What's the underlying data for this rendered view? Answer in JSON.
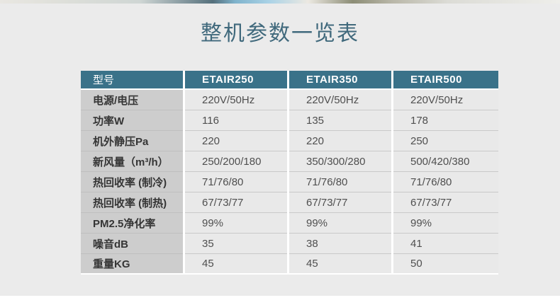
{
  "page": {
    "title": "整机参数一览表"
  },
  "colors": {
    "header_teal": "#3a7289",
    "title_teal": "#40697c",
    "label_column_gray": "#cdcdcd",
    "data_cell_gray": "#e9e9e9",
    "page_background": "#ebebeb",
    "column_gap_white": "#ffffff"
  },
  "table": {
    "columns": [
      "型号",
      "ETAIR250",
      "ETAIR350",
      "ETAIR500"
    ],
    "rows": [
      {
        "label": "电源/电压",
        "values": [
          "220V/50Hz",
          "220V/50Hz",
          "220V/50Hz"
        ]
      },
      {
        "label": "功率W",
        "values": [
          "116",
          "135",
          "178"
        ]
      },
      {
        "label": "机外静压Pa",
        "values": [
          "220",
          "220",
          "250"
        ]
      },
      {
        "label": "新风量（m³/h）",
        "values": [
          "250/200/180",
          "350/300/280",
          "500/420/380"
        ]
      },
      {
        "label": "热回收率 (制冷)",
        "values": [
          "71/76/80",
          "71/76/80",
          "71/76/80"
        ]
      },
      {
        "label": "热回收率 (制热)",
        "values": [
          "67/73/77",
          "67/73/77",
          "67/73/77"
        ]
      },
      {
        "label": "PM2.5净化率",
        "values": [
          "99%",
          "99%",
          "99%"
        ]
      },
      {
        "label": "噪音dB",
        "values": [
          "35",
          "38",
          "41"
        ]
      },
      {
        "label": "重量KG",
        "values": [
          "45",
          "45",
          "50"
        ]
      }
    ]
  }
}
